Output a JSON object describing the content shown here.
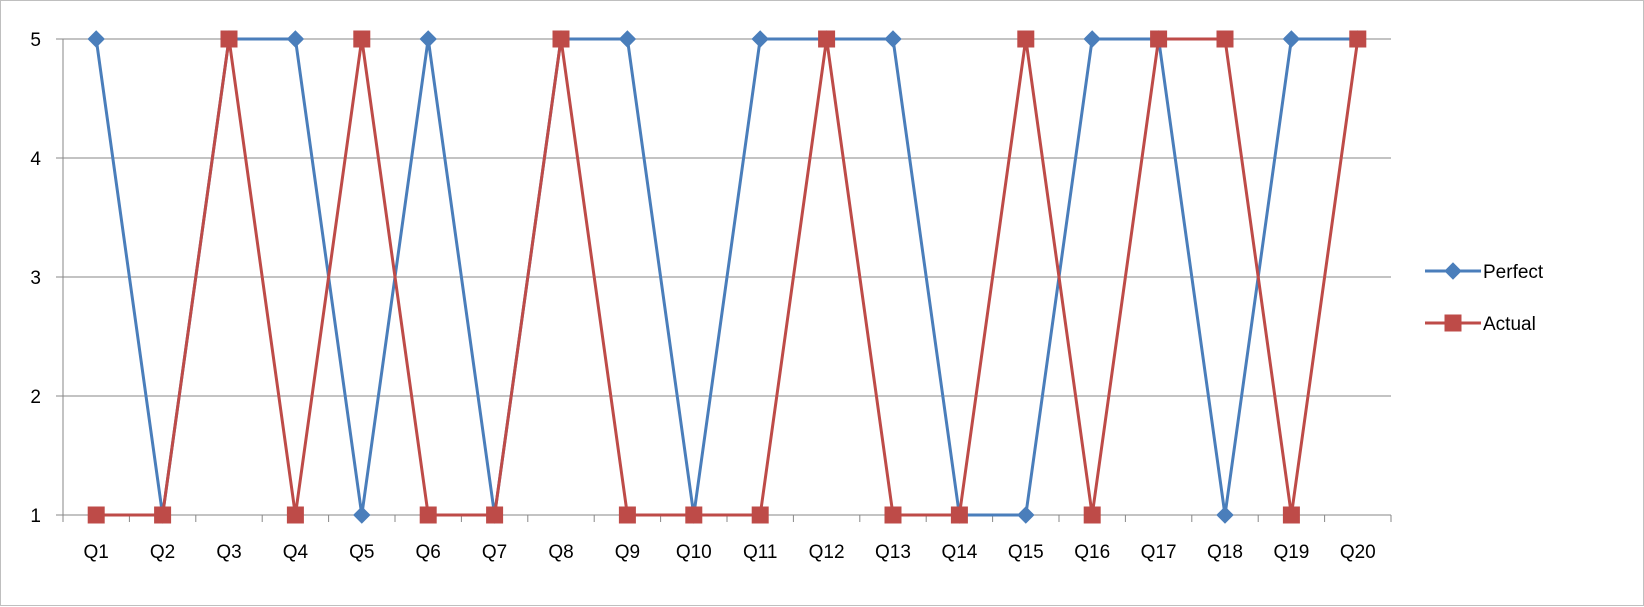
{
  "chart_data": {
    "type": "line",
    "categories": [
      "Q1",
      "Q2",
      "Q3",
      "Q4",
      "Q5",
      "Q6",
      "Q7",
      "Q8",
      "Q9",
      "Q10",
      "Q11",
      "Q12",
      "Q13",
      "Q14",
      "Q15",
      "Q16",
      "Q17",
      "Q18",
      "Q19",
      "Q20"
    ],
    "series": [
      {
        "name": "Perfect",
        "color": "#4a7ebb",
        "marker": "diamond",
        "values": [
          5,
          1,
          5,
          5,
          1,
          5,
          1,
          5,
          5,
          1,
          5,
          5,
          5,
          1,
          1,
          5,
          5,
          1,
          5,
          5
        ]
      },
      {
        "name": "Actual",
        "color": "#be4b48",
        "marker": "square",
        "values": [
          1,
          1,
          5,
          1,
          5,
          1,
          1,
          5,
          1,
          1,
          1,
          5,
          1,
          1,
          5,
          1,
          5,
          5,
          1,
          5
        ]
      }
    ],
    "yticks": [
      "1",
      "2",
      "3",
      "4",
      "5"
    ],
    "ylim": [
      1,
      5
    ],
    "title": "",
    "xlabel": "",
    "ylabel": "",
    "grid": "horizontal",
    "legend_position": "right"
  }
}
